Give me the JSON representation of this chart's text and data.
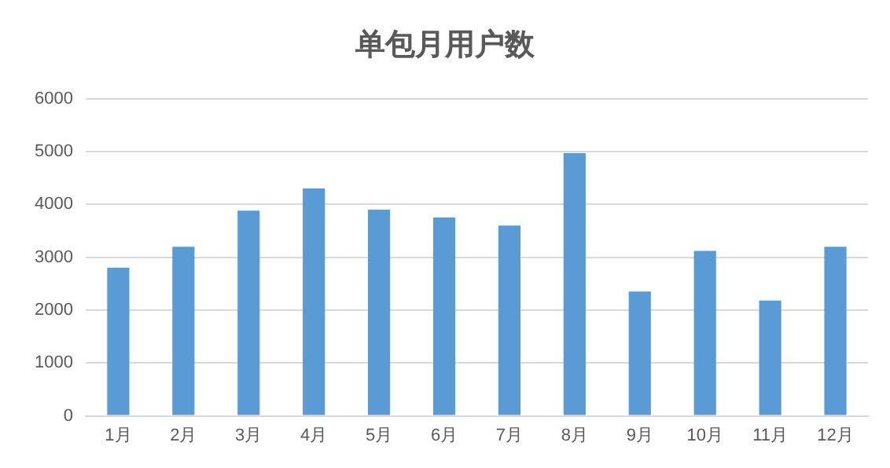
{
  "chart_data": {
    "type": "bar",
    "title": "单包月用户数",
    "categories": [
      "1月",
      "2月",
      "3月",
      "4月",
      "5月",
      "6月",
      "7月",
      "8月",
      "9月",
      "10月",
      "11月",
      "12月"
    ],
    "values": [
      2800,
      3200,
      3880,
      4300,
      3900,
      3750,
      3600,
      4970,
      2350,
      3120,
      2180,
      3200
    ],
    "color": "#5b9bd5",
    "ylim": [
      0,
      6000
    ],
    "yticks": [
      0,
      1000,
      2000,
      3000,
      4000,
      5000,
      6000
    ],
    "grid": "y",
    "legend": false
  }
}
